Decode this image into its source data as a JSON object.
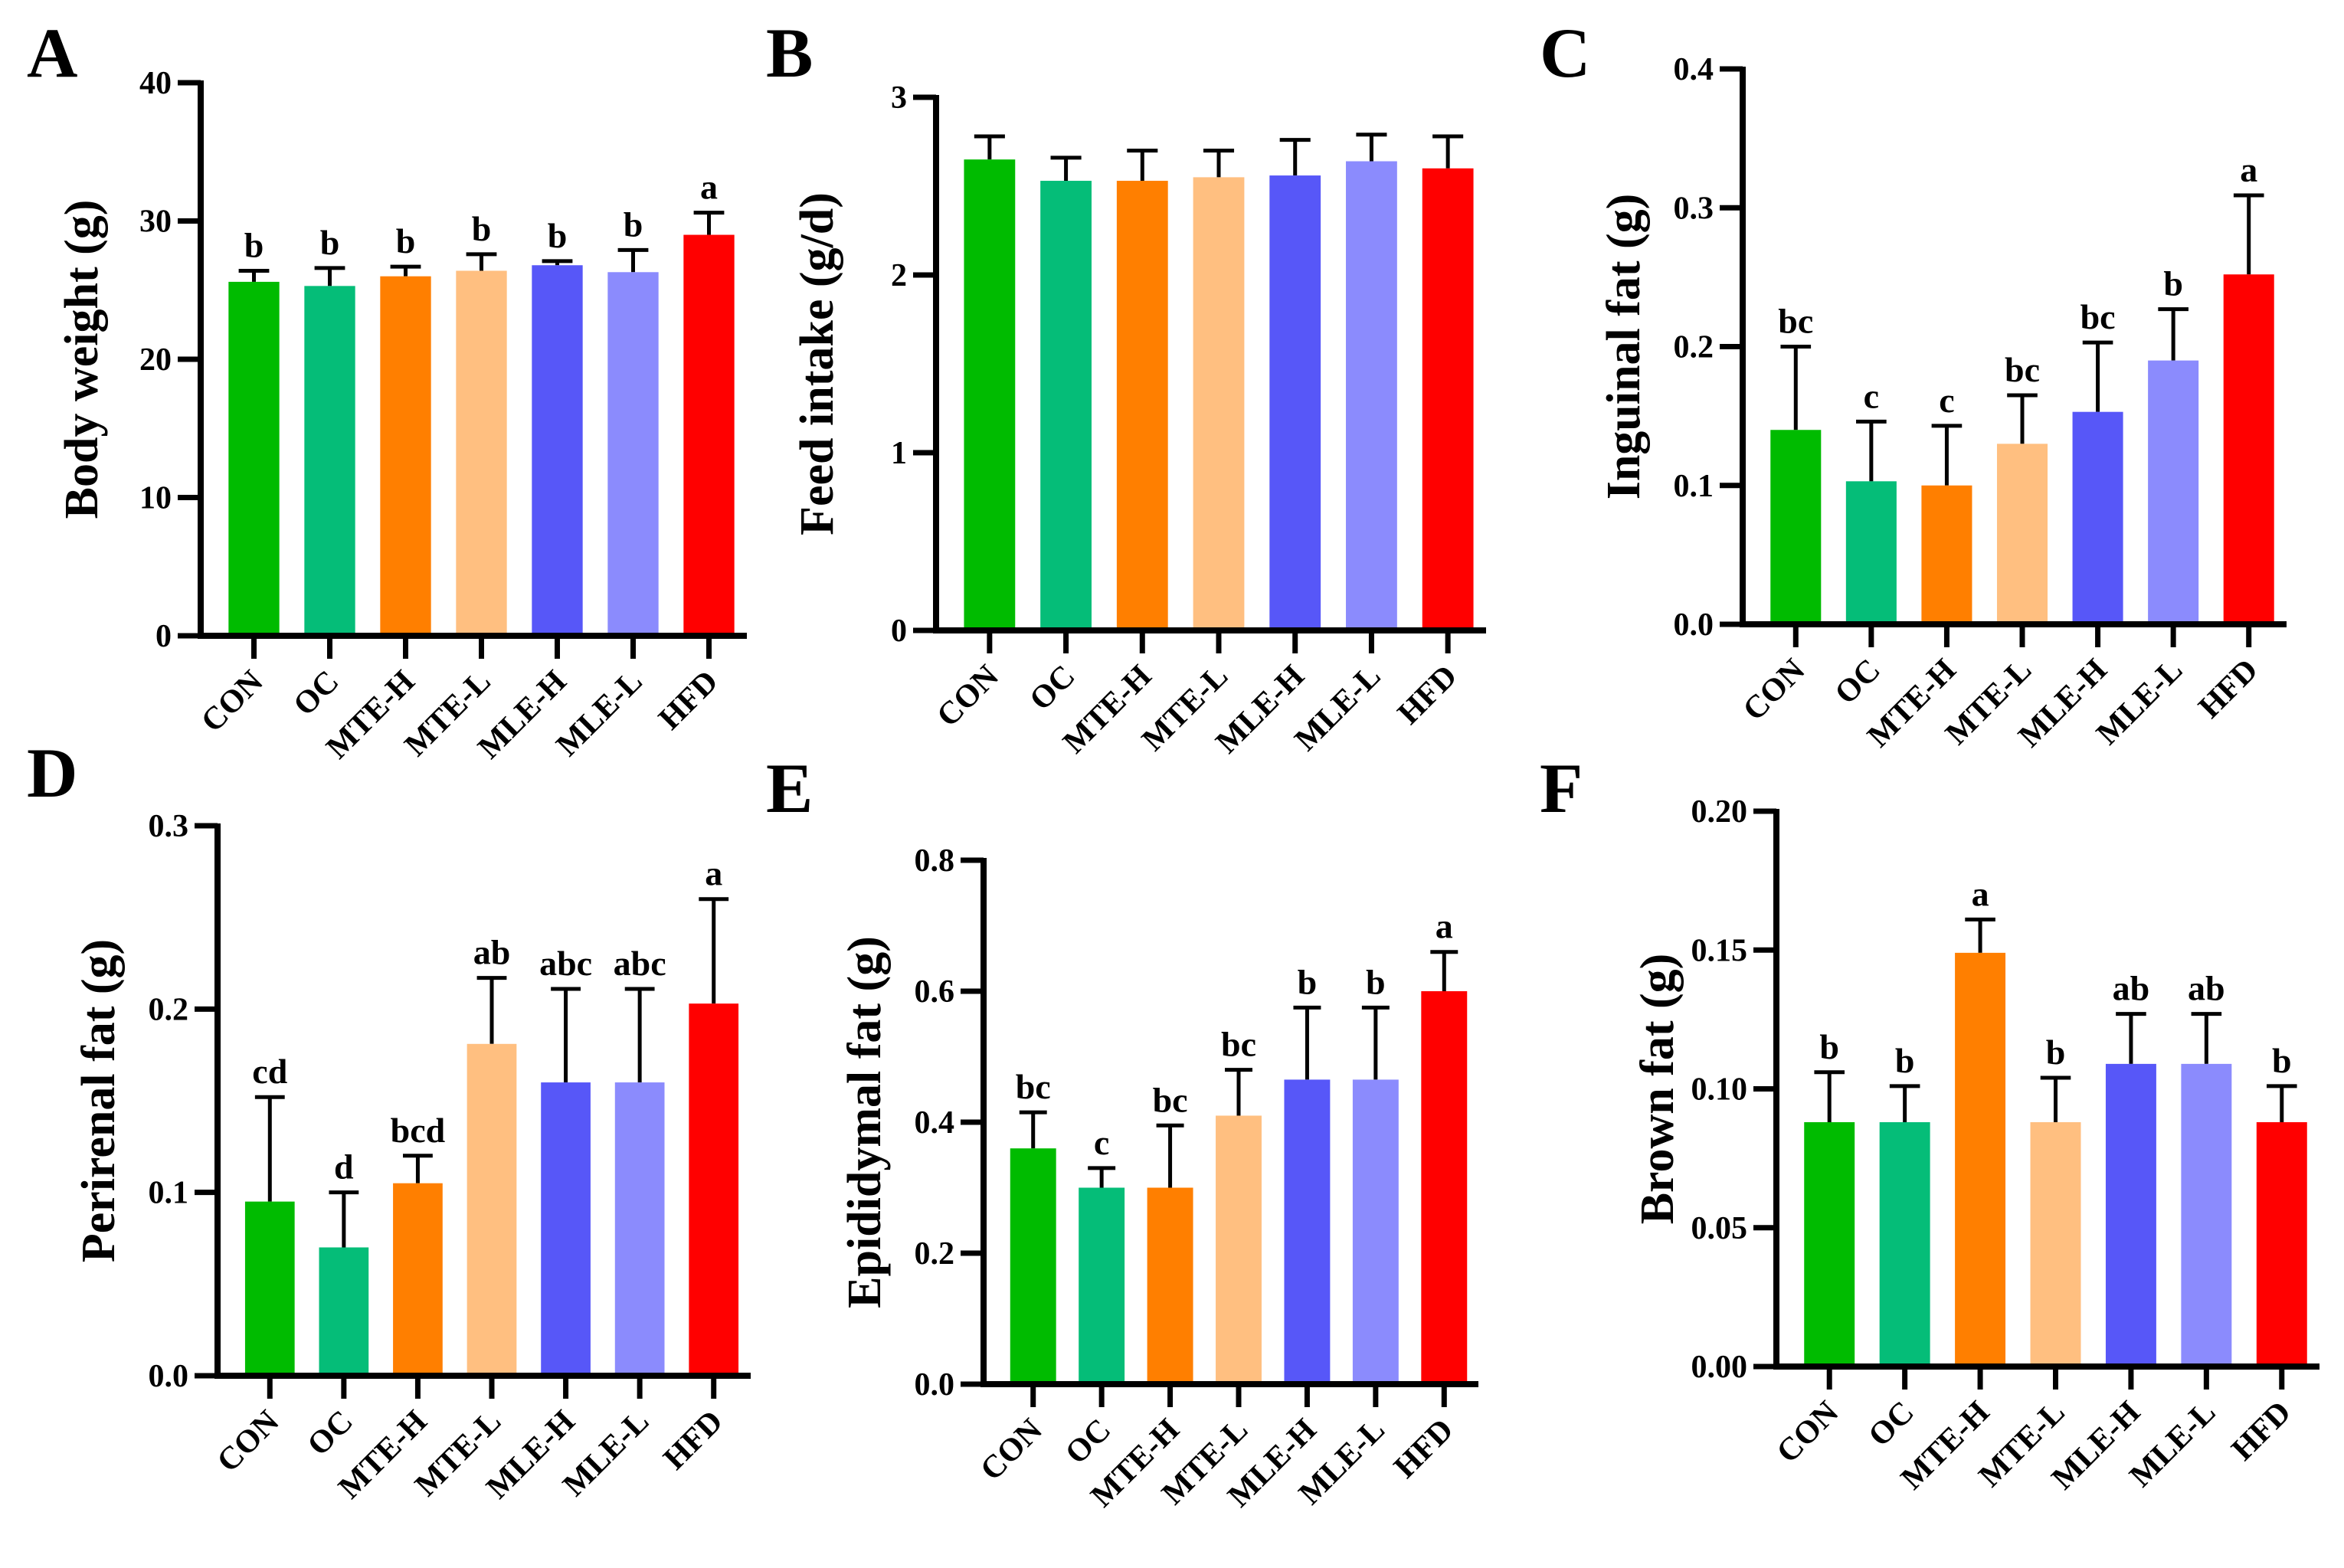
{
  "chart_data": [
    {
      "panel": "A",
      "type": "bar",
      "ylabel": "Body weight (g)",
      "ylim": [
        0,
        40
      ],
      "yticks": [
        "0",
        "10",
        "20",
        "30",
        "40"
      ],
      "ytick_values": [
        0,
        10,
        20,
        30,
        40
      ],
      "categories": [
        "CON",
        "OC",
        "MTE-H",
        "MTE-L",
        "MLE-H",
        "MLE-L",
        "HFD"
      ],
      "values": [
        25.6,
        25.3,
        26.0,
        26.4,
        26.8,
        26.3,
        29.0
      ],
      "errors": [
        0.8,
        1.3,
        0.7,
        1.2,
        0.3,
        1.6,
        1.6
      ],
      "letters": [
        "b",
        "b",
        "b",
        "b",
        "b",
        "b",
        "a"
      ]
    },
    {
      "panel": "B",
      "type": "bar",
      "ylabel": "Feed intake (g/d)",
      "ylim": [
        0,
        3
      ],
      "yticks": [
        "0",
        "1",
        "2",
        "3"
      ],
      "ytick_values": [
        0,
        1,
        2,
        3
      ],
      "categories": [
        "CON",
        "OC",
        "MTE-H",
        "MTE-L",
        "MLE-H",
        "MLE-L",
        "HFD"
      ],
      "values": [
        2.65,
        2.53,
        2.53,
        2.55,
        2.56,
        2.64,
        2.6
      ],
      "errors": [
        0.13,
        0.13,
        0.17,
        0.15,
        0.2,
        0.15,
        0.18
      ],
      "letters": [
        "",
        "",
        "",
        "",
        "",
        "",
        ""
      ]
    },
    {
      "panel": "C",
      "type": "bar",
      "ylabel": "Inguinal fat (g)",
      "ylim": [
        0,
        0.4
      ],
      "yticks": [
        "0.0",
        "0.1",
        "0.2",
        "0.3",
        "0.4"
      ],
      "ytick_values": [
        0,
        0.1,
        0.2,
        0.3,
        0.4
      ],
      "categories": [
        "CON",
        "OC",
        "MTE-H",
        "MTE-L",
        "MLE-H",
        "MLE-L",
        "HFD"
      ],
      "values": [
        0.14,
        0.103,
        0.1,
        0.13,
        0.153,
        0.19,
        0.252
      ],
      "errors": [
        0.06,
        0.043,
        0.043,
        0.035,
        0.05,
        0.037,
        0.057
      ],
      "letters": [
        "bc",
        "c",
        "c",
        "bc",
        "bc",
        "b",
        "a"
      ]
    },
    {
      "panel": "D",
      "type": "bar",
      "ylabel": "Perirenal fat (g)",
      "ylim": [
        0,
        0.3
      ],
      "yticks": [
        "0.0",
        "0.1",
        "0.2",
        "0.3"
      ],
      "ytick_values": [
        0,
        0.1,
        0.2,
        0.3
      ],
      "categories": [
        "CON",
        "OC",
        "MTE-H",
        "MTE-L",
        "MLE-H",
        "MLE-L",
        "HFD"
      ],
      "values": [
        0.095,
        0.07,
        0.105,
        0.181,
        0.16,
        0.16,
        0.203
      ],
      "errors": [
        0.057,
        0.03,
        0.015,
        0.036,
        0.051,
        0.051,
        0.057
      ],
      "letters": [
        "cd",
        "d",
        "bcd",
        "ab",
        "abc",
        "abc",
        "a"
      ]
    },
    {
      "panel": "E",
      "type": "bar",
      "ylabel": "Epididymal fat (g)",
      "ylim": [
        0,
        0.8
      ],
      "yticks": [
        "0.0",
        "0.2",
        "0.4",
        "0.6",
        "0.8"
      ],
      "ytick_values": [
        0,
        0.2,
        0.4,
        0.6,
        0.8
      ],
      "categories": [
        "CON",
        "OC",
        "MTE-H",
        "MTE-L",
        "MLE-H",
        "MLE-L",
        "HFD"
      ],
      "values": [
        0.36,
        0.3,
        0.3,
        0.41,
        0.465,
        0.465,
        0.6
      ],
      "errors": [
        0.055,
        0.03,
        0.095,
        0.07,
        0.11,
        0.11,
        0.06
      ],
      "letters": [
        "bc",
        "c",
        "bc",
        "bc",
        "b",
        "b",
        "a"
      ]
    },
    {
      "panel": "F",
      "type": "bar",
      "ylabel": "Brown fat (g)",
      "ylim": [
        0,
        0.2
      ],
      "yticks": [
        "0.00",
        "0.05",
        "0.10",
        "0.15",
        "0.20"
      ],
      "ytick_values": [
        0,
        0.05,
        0.1,
        0.15,
        0.2
      ],
      "categories": [
        "CON",
        "OC",
        "MTE-H",
        "MTE-L",
        "MLE-H",
        "MLE-L",
        "HFD"
      ],
      "values": [
        0.088,
        0.088,
        0.149,
        0.088,
        0.109,
        0.109,
        0.088
      ],
      "errors": [
        0.018,
        0.013,
        0.012,
        0.016,
        0.018,
        0.018,
        0.013
      ],
      "letters": [
        "b",
        "b",
        "a",
        "b",
        "ab",
        "ab",
        "b"
      ]
    }
  ],
  "colors": [
    "#00bb00",
    "#05bd78",
    "#ff7f00",
    "#ffbf80",
    "#5757f8",
    "#8b8bfd",
    "#ff0000"
  ]
}
